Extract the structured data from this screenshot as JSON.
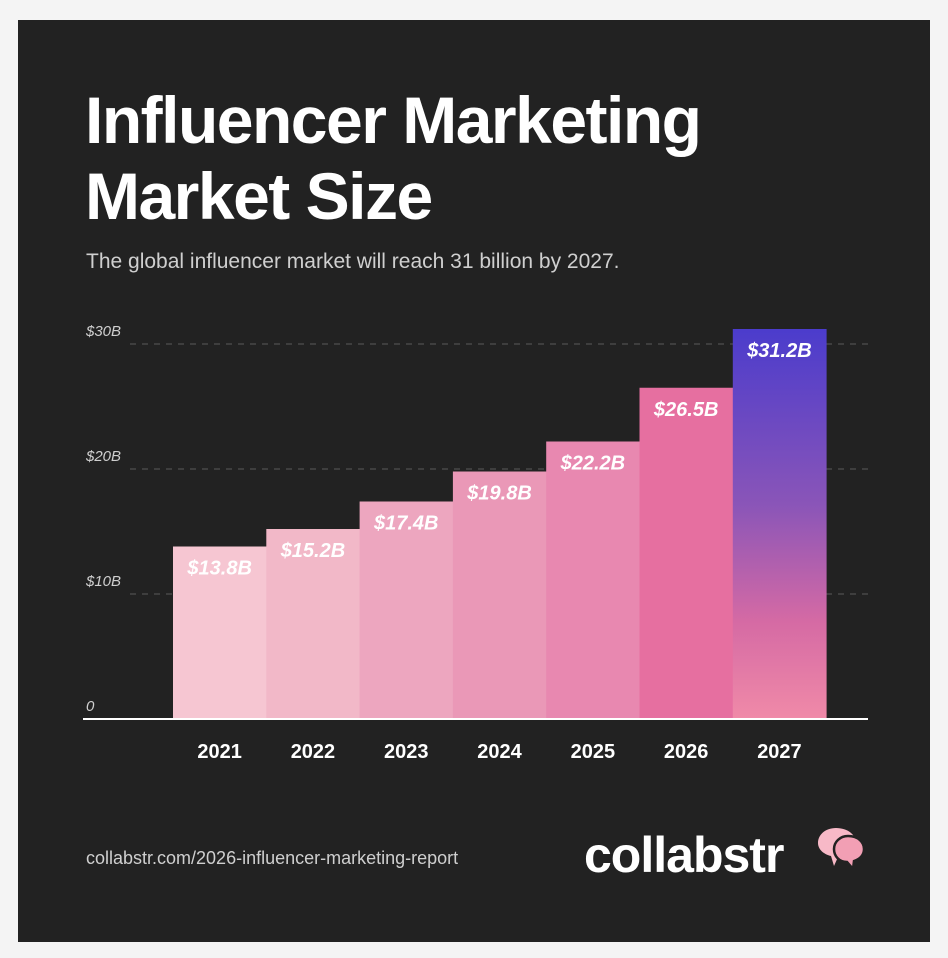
{
  "title_line1": "Influencer Marketing",
  "title_line2": "Market Size",
  "subtitle": "The global influencer market will reach 31 billion by 2027.",
  "source": "collabstr.com/2026-influencer-marketing-report",
  "brand": "collabstr",
  "colors": {
    "background": "#222222",
    "bar_gradient_top": "#4b3ccc",
    "bar_gradient_bottom": "#f08aa8"
  },
  "chart_data": {
    "type": "bar",
    "title": "Influencer Marketing Market Size",
    "categories": [
      "2021",
      "2022",
      "2023",
      "2024",
      "2025",
      "2026",
      "2027"
    ],
    "values": [
      13.8,
      15.2,
      17.4,
      19.8,
      22.2,
      26.5,
      31.2
    ],
    "value_labels": [
      "$13.8B",
      "$15.2B",
      "$17.4B",
      "$19.8B",
      "$22.2B",
      "$26.5B",
      "$31.2B"
    ],
    "bar_colors": [
      "#f6c6d2",
      "#f2b8c8",
      "#eda6bf",
      "#ea98b7",
      "#e888b0",
      "#e66fa0",
      "gradient"
    ],
    "yticks": [
      0,
      10,
      20,
      30
    ],
    "ytick_labels": [
      "0",
      "$10B",
      "$20B",
      "$30B"
    ],
    "ylim": [
      0,
      31.2
    ],
    "grid": true,
    "legend": false,
    "xlabel": "",
    "ylabel": ""
  }
}
